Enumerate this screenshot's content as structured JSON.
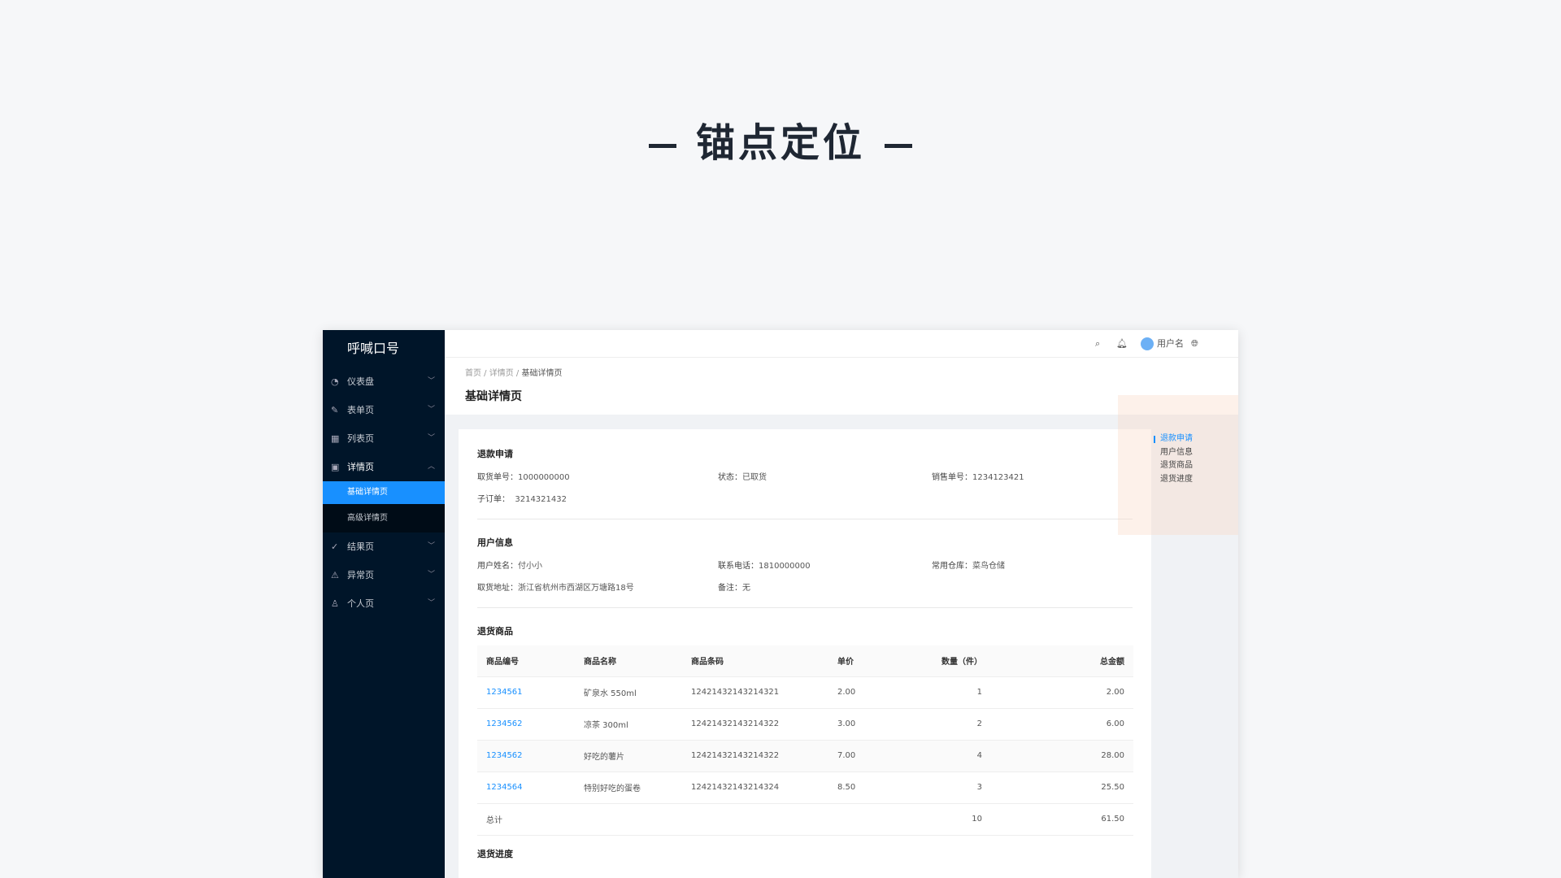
{
  "hero": {
    "title": "锚点定位"
  },
  "app": {
    "logo": "呼喊口号"
  },
  "sidebar": {
    "items": [
      {
        "label": "仪表盘",
        "icon": "dashboard-icon"
      },
      {
        "label": "表单页",
        "icon": "form-icon"
      },
      {
        "label": "列表页",
        "icon": "table-icon"
      },
      {
        "label": "详情页",
        "icon": "profile-icon",
        "expanded": true,
        "children": [
          {
            "label": "基础详情页",
            "active": true
          },
          {
            "label": "高级详情页"
          }
        ]
      },
      {
        "label": "结果页",
        "icon": "check-circle-icon"
      },
      {
        "label": "异常页",
        "icon": "warning-icon"
      },
      {
        "label": "个人页",
        "icon": "user-icon"
      }
    ]
  },
  "header": {
    "username": "用户名"
  },
  "breadcrumb": [
    "首页",
    "详情页",
    "基础详情页"
  ],
  "page_title": "基础详情页",
  "refund": {
    "title": "退款申请",
    "pickup_no_label": "取货单号：",
    "pickup_no": "1000000000",
    "status_label": "状态：",
    "status": "已取货",
    "sale_no_label": "销售单号：",
    "sale_no": "1234123421",
    "sub_order_label": "子订单：",
    "sub_order": "3214321432"
  },
  "user": {
    "title": "用户信息",
    "name_label": "用户姓名：",
    "name": "付小小",
    "phone_label": "联系电话：",
    "phone": "1810000000",
    "warehouse_label": "常用仓库：",
    "warehouse": "菜鸟仓储",
    "address_label": "取货地址：",
    "address": "浙江省杭州市西湖区万塘路18号",
    "remark_label": "备注：",
    "remark": "无"
  },
  "goods": {
    "title": "退货商品",
    "columns": [
      "商品编号",
      "商品名称",
      "商品条码",
      "单价",
      "数量（件）",
      "总金额"
    ],
    "rows": [
      [
        "1234561",
        "矿泉水 550ml",
        "12421432143214321",
        "2.00",
        "1",
        "2.00"
      ],
      [
        "1234562",
        "凉茶 300ml",
        "12421432143214322",
        "3.00",
        "2",
        "6.00"
      ],
      [
        "1234562",
        "好吃的薯片",
        "12421432143214322",
        "7.00",
        "4",
        "28.00"
      ],
      [
        "1234564",
        "特别好吃的蛋卷",
        "12421432143214324",
        "8.50",
        "3",
        "25.50"
      ]
    ],
    "total": [
      "总计",
      "10",
      "61.50"
    ]
  },
  "progress": {
    "title": "退货进度"
  },
  "anchor": {
    "items": [
      "退款申请",
      "用户信息",
      "退货商品",
      "退货进度"
    ],
    "active": 0
  },
  "colors": {
    "primary": "#1890ff",
    "sidebar": "#001529"
  }
}
